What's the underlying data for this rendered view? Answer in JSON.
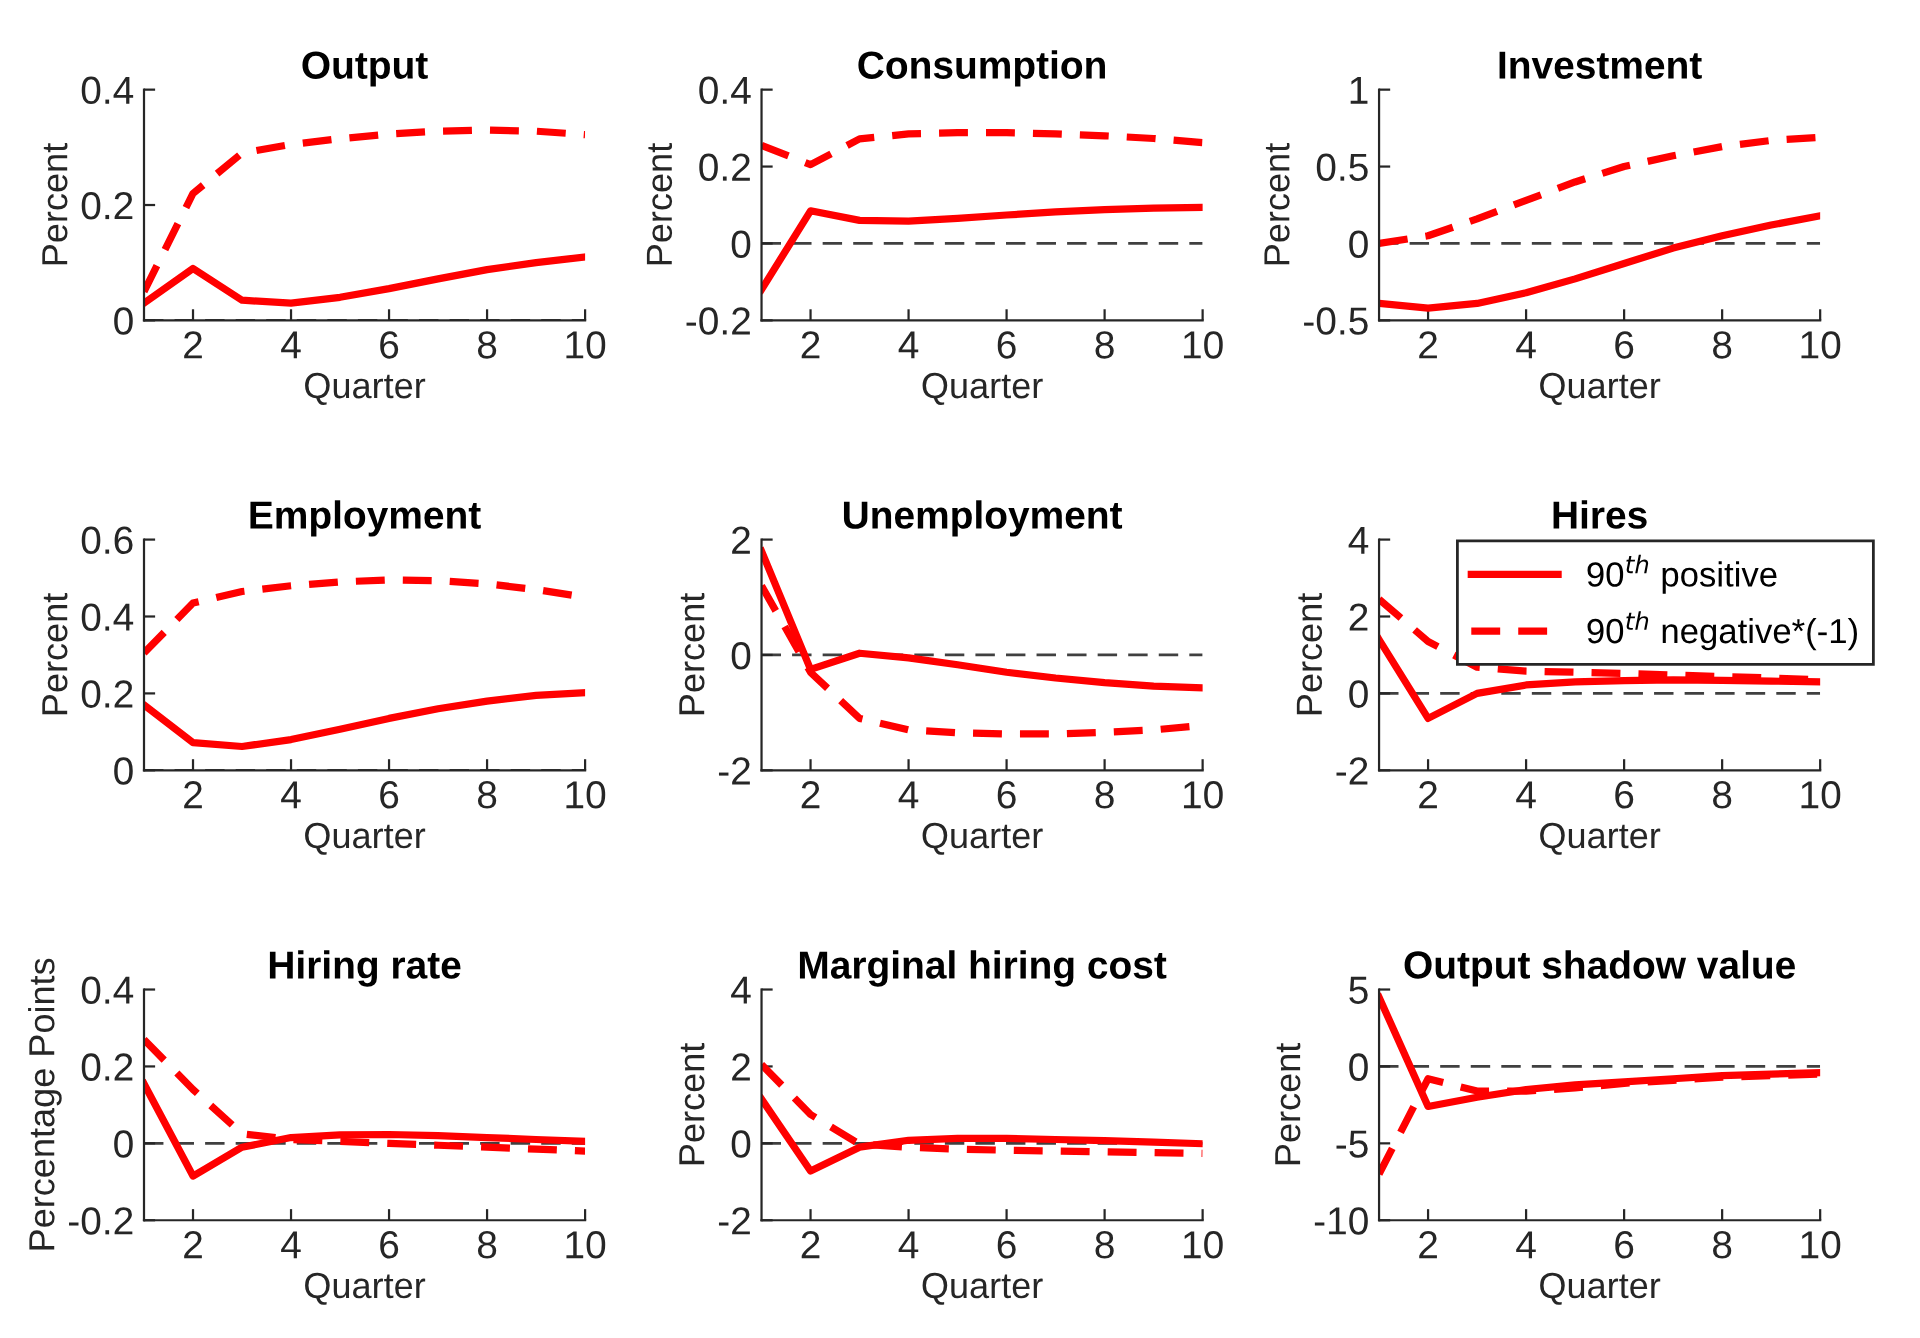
{
  "chart_data": [
    {
      "type": "line",
      "title": "Output",
      "xlabel": "Quarter",
      "ylabel": "Percent",
      "x": [
        1,
        2,
        3,
        4,
        5,
        6,
        7,
        8,
        9,
        10
      ],
      "xlim": [
        1,
        10
      ],
      "xticks": [
        2,
        4,
        6,
        8,
        10
      ],
      "ylim": [
        0,
        0.4
      ],
      "yticks": [
        0,
        0.2,
        0.4
      ],
      "legend": false,
      "grid": false,
      "series": [
        {
          "color": "#ff0000",
          "line_style": "solid",
          "values": [
            0.03,
            0.09,
            0.035,
            0.03,
            0.04,
            0.055,
            0.072,
            0.088,
            0.1,
            0.11
          ]
        },
        {
          "color": "#ff0000",
          "line_style": "dashed",
          "values": [
            0.05,
            0.22,
            0.29,
            0.305,
            0.315,
            0.323,
            0.328,
            0.33,
            0.328,
            0.322
          ]
        }
      ],
      "ref_lines": [
        {
          "axis": "y",
          "value": 0,
          "color": "#404040",
          "line_style": "dashed"
        }
      ]
    },
    {
      "type": "line",
      "title": "Consumption",
      "xlabel": "Quarter",
      "ylabel": "Percent",
      "x": [
        1,
        2,
        3,
        4,
        5,
        6,
        7,
        8,
        9,
        10
      ],
      "xlim": [
        1,
        10
      ],
      "xticks": [
        2,
        4,
        6,
        8,
        10
      ],
      "ylim": [
        -0.2,
        0.4
      ],
      "yticks": [
        -0.2,
        0,
        0.2,
        0.4
      ],
      "legend": false,
      "grid": false,
      "series": [
        {
          "color": "#ff0000",
          "line_style": "solid",
          "values": [
            -0.12,
            0.085,
            0.06,
            0.058,
            0.065,
            0.074,
            0.082,
            0.088,
            0.092,
            0.094
          ]
        },
        {
          "color": "#ff0000",
          "line_style": "dashed",
          "values": [
            0.255,
            0.205,
            0.272,
            0.285,
            0.288,
            0.288,
            0.285,
            0.28,
            0.273,
            0.262
          ]
        }
      ],
      "ref_lines": [
        {
          "axis": "y",
          "value": 0,
          "color": "#404040",
          "line_style": "dashed"
        }
      ]
    },
    {
      "type": "line",
      "title": "Investment",
      "xlabel": "Quarter",
      "ylabel": "Percent",
      "x": [
        1,
        2,
        3,
        4,
        5,
        6,
        7,
        8,
        9,
        10
      ],
      "xlim": [
        1,
        10
      ],
      "xticks": [
        2,
        4,
        6,
        8,
        10
      ],
      "ylim": [
        -0.5,
        1
      ],
      "yticks": [
        -0.5,
        0,
        0.5,
        1
      ],
      "legend": false,
      "grid": false,
      "series": [
        {
          "color": "#ff0000",
          "line_style": "solid",
          "values": [
            -0.39,
            -0.42,
            -0.39,
            -0.32,
            -0.23,
            -0.13,
            -0.03,
            0.05,
            0.12,
            0.18
          ]
        },
        {
          "color": "#ff0000",
          "line_style": "dashed",
          "values": [
            0.0,
            0.05,
            0.16,
            0.28,
            0.4,
            0.5,
            0.57,
            0.63,
            0.67,
            0.69
          ]
        }
      ],
      "ref_lines": [
        {
          "axis": "y",
          "value": 0,
          "color": "#404040",
          "line_style": "dashed"
        }
      ]
    },
    {
      "type": "line",
      "title": "Employment",
      "xlabel": "Quarter",
      "ylabel": "Percent",
      "x": [
        1,
        2,
        3,
        4,
        5,
        6,
        7,
        8,
        9,
        10
      ],
      "xlim": [
        1,
        10
      ],
      "xticks": [
        2,
        4,
        6,
        8,
        10
      ],
      "ylim": [
        0,
        0.6
      ],
      "yticks": [
        0,
        0.2,
        0.4,
        0.6
      ],
      "legend": false,
      "grid": false,
      "series": [
        {
          "color": "#ff0000",
          "line_style": "solid",
          "values": [
            0.17,
            0.072,
            0.062,
            0.08,
            0.107,
            0.135,
            0.16,
            0.18,
            0.195,
            0.202
          ]
        },
        {
          "color": "#ff0000",
          "line_style": "dashed",
          "values": [
            0.305,
            0.435,
            0.465,
            0.48,
            0.49,
            0.495,
            0.493,
            0.485,
            0.47,
            0.45
          ]
        }
      ],
      "ref_lines": [
        {
          "axis": "y",
          "value": 0,
          "color": "#404040",
          "line_style": "dashed"
        }
      ]
    },
    {
      "type": "line",
      "title": "Unemployment",
      "xlabel": "Quarter",
      "ylabel": "Percent",
      "x": [
        1,
        2,
        3,
        4,
        5,
        6,
        7,
        8,
        9,
        10
      ],
      "xlim": [
        1,
        10
      ],
      "xticks": [
        2,
        4,
        6,
        8,
        10
      ],
      "ylim": [
        -2,
        2
      ],
      "yticks": [
        -2,
        0,
        2
      ],
      "legend": false,
      "grid": false,
      "series": [
        {
          "color": "#ff0000",
          "line_style": "solid",
          "values": [
            1.8,
            -0.25,
            0.03,
            -0.05,
            -0.17,
            -0.3,
            -0.4,
            -0.48,
            -0.54,
            -0.57
          ]
        },
        {
          "color": "#ff0000",
          "line_style": "dashed",
          "values": [
            1.2,
            -0.3,
            -1.1,
            -1.3,
            -1.35,
            -1.37,
            -1.37,
            -1.34,
            -1.3,
            -1.22
          ]
        }
      ],
      "ref_lines": [
        {
          "axis": "y",
          "value": 0,
          "color": "#404040",
          "line_style": "dashed"
        }
      ]
    },
    {
      "type": "line",
      "title": "Hires",
      "xlabel": "Quarter",
      "ylabel": "Percent",
      "x": [
        1,
        2,
        3,
        4,
        5,
        6,
        7,
        8,
        9,
        10
      ],
      "xlim": [
        1,
        10
      ],
      "xticks": [
        2,
        4,
        6,
        8,
        10
      ],
      "ylim": [
        -2,
        4
      ],
      "yticks": [
        -2,
        0,
        2,
        4
      ],
      "legend": "top right",
      "grid": false,
      "series": [
        {
          "name": "90$^{th}$ positive",
          "color": "#ff0000",
          "line_style": "solid",
          "values": [
            1.4,
            -0.65,
            0.0,
            0.22,
            0.3,
            0.33,
            0.35,
            0.34,
            0.32,
            0.3
          ]
        },
        {
          "name": "90$^{th}$ negative*(-1)",
          "color": "#ff0000",
          "line_style": "dashed",
          "values": [
            2.45,
            1.35,
            0.68,
            0.58,
            0.55,
            0.52,
            0.48,
            0.44,
            0.4,
            0.35
          ]
        }
      ],
      "ref_lines": [
        {
          "axis": "y",
          "value": 0,
          "color": "#404040",
          "line_style": "dashed"
        }
      ]
    },
    {
      "type": "line",
      "title": "Hiring rate",
      "xlabel": "Quarter",
      "ylabel": "Percentage Points",
      "x": [
        1,
        2,
        3,
        4,
        5,
        6,
        7,
        8,
        9,
        10
      ],
      "xlim": [
        1,
        10
      ],
      "xticks": [
        2,
        4,
        6,
        8,
        10
      ],
      "ylim": [
        -0.2,
        0.4
      ],
      "yticks": [
        -0.2,
        0,
        0.2,
        0.4
      ],
      "legend": false,
      "grid": false,
      "series": [
        {
          "color": "#ff0000",
          "line_style": "solid",
          "values": [
            0.155,
            -0.085,
            -0.01,
            0.015,
            0.022,
            0.023,
            0.02,
            0.015,
            0.01,
            0.005
          ]
        },
        {
          "color": "#ff0000",
          "line_style": "dashed",
          "values": [
            0.27,
            0.14,
            0.025,
            0.01,
            0.005,
            0.0,
            -0.005,
            -0.01,
            -0.015,
            -0.02
          ]
        }
      ],
      "ref_lines": [
        {
          "axis": "y",
          "value": 0,
          "color": "#404040",
          "line_style": "dashed"
        }
      ]
    },
    {
      "type": "line",
      "title": "Marginal hiring cost",
      "xlabel": "Quarter",
      "ylabel": "Percent",
      "x": [
        1,
        2,
        3,
        4,
        5,
        6,
        7,
        8,
        9,
        10
      ],
      "xlim": [
        1,
        10
      ],
      "xticks": [
        2,
        4,
        6,
        8,
        10
      ],
      "ylim": [
        -2,
        4
      ],
      "yticks": [
        -2,
        0,
        2,
        4
      ],
      "legend": false,
      "grid": false,
      "series": [
        {
          "color": "#ff0000",
          "line_style": "solid",
          "values": [
            1.15,
            -0.72,
            -0.1,
            0.08,
            0.13,
            0.13,
            0.1,
            0.07,
            0.03,
            -0.01
          ]
        },
        {
          "color": "#ff0000",
          "line_style": "dashed",
          "values": [
            2.05,
            0.75,
            -0.02,
            -0.1,
            -0.15,
            -0.18,
            -0.2,
            -0.22,
            -0.24,
            -0.26
          ]
        }
      ],
      "ref_lines": [
        {
          "axis": "y",
          "value": 0,
          "color": "#404040",
          "line_style": "dashed"
        }
      ]
    },
    {
      "type": "line",
      "title": "Output shadow value",
      "xlabel": "Quarter",
      "ylabel": "Percent",
      "x": [
        1,
        2,
        3,
        4,
        5,
        6,
        7,
        8,
        9,
        10
      ],
      "xlim": [
        1,
        10
      ],
      "xticks": [
        2,
        4,
        6,
        8,
        10
      ],
      "ylim": [
        -10,
        5
      ],
      "yticks": [
        -10,
        -5,
        0,
        5
      ],
      "legend": false,
      "grid": false,
      "series": [
        {
          "color": "#ff0000",
          "line_style": "solid",
          "values": [
            4.5,
            -2.6,
            -2.0,
            -1.5,
            -1.2,
            -1.0,
            -0.8,
            -0.6,
            -0.5,
            -0.4
          ]
        },
        {
          "color": "#ff0000",
          "line_style": "dashed",
          "values": [
            -7.0,
            -0.8,
            -1.6,
            -1.6,
            -1.4,
            -1.1,
            -0.9,
            -0.7,
            -0.6,
            -0.5
          ]
        }
      ],
      "ref_lines": [
        {
          "axis": "y",
          "value": 0,
          "color": "#404040",
          "line_style": "dashed"
        }
      ]
    }
  ]
}
